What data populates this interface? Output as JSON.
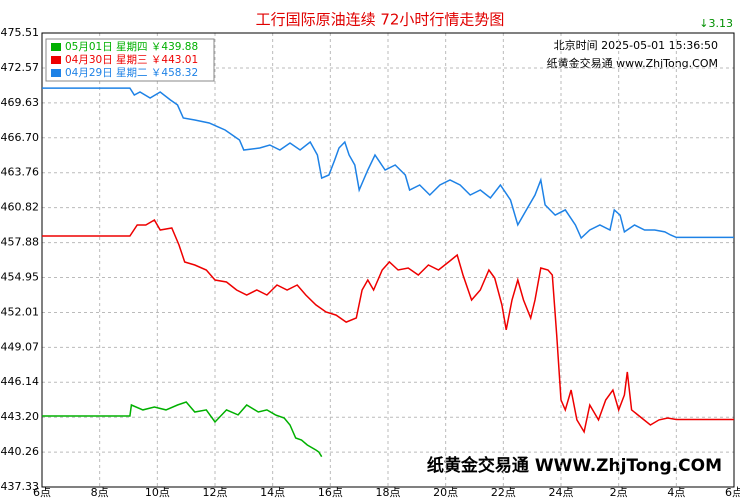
{
  "chart_data": {
    "type": "line",
    "title": "工行国际原油连续 72小时行情走势图",
    "change_label": "↓3.13",
    "time_label": "北京时间 2025-05-01 15:36:50",
    "site_label": "纸黄金交易通 www.ZhjTong.COM",
    "watermark": "纸黄金交易通 WWW.ZhjTong.COM",
    "grid": true,
    "legend": "upper left",
    "xlim": [
      6,
      30
    ],
    "xticks": [
      {
        "value": 6,
        "label": "6点"
      },
      {
        "value": 8,
        "label": "8点"
      },
      {
        "value": 10,
        "label": "10点"
      },
      {
        "value": 12,
        "label": "12点"
      },
      {
        "value": 14,
        "label": "14点"
      },
      {
        "value": 16,
        "label": "16点"
      },
      {
        "value": 18,
        "label": "18点"
      },
      {
        "value": 20,
        "label": "20点"
      },
      {
        "value": 22,
        "label": "22点"
      },
      {
        "value": 24,
        "label": "24点"
      },
      {
        "value": 26,
        "label": "2点"
      },
      {
        "value": 28,
        "label": "4点"
      },
      {
        "value": 30,
        "label": "6点"
      }
    ],
    "ylim": [
      437.33,
      475.51
    ],
    "yticks": [
      475.51,
      472.57,
      469.63,
      {
        "value": 466.7,
        "label": "466.70"
      },
      463.76,
      460.82,
      457.88,
      454.95,
      452.01,
      449.07,
      446.14,
      {
        "value": 443.2,
        "label": "443.20"
      },
      440.26,
      437.33
    ],
    "series": [
      {
        "name": "05月01日 星期四 ￥439.88",
        "color": "#00b000",
        "x": [
          6,
          9.05,
          9.1,
          9.5,
          9.9,
          10.3,
          10.7,
          11.0,
          11.3,
          11.7,
          12.0,
          12.4,
          12.8,
          13.1,
          13.5,
          13.8,
          14.1,
          14.4,
          14.6,
          14.8,
          15.0,
          15.2,
          15.5,
          15.6,
          15.7
        ],
        "values": [
          443.3,
          443.3,
          444.23,
          443.81,
          444.06,
          443.81,
          444.23,
          444.48,
          443.64,
          443.81,
          442.8,
          443.81,
          443.39,
          444.23,
          443.64,
          443.81,
          443.39,
          443.13,
          442.54,
          441.45,
          441.28,
          440.86,
          440.44,
          440.27,
          439.88
        ]
      },
      {
        "name": "04月30日 星期三 ￥443.01",
        "color": "#ee0000",
        "x": [
          6,
          9.05,
          9.3,
          9.6,
          9.9,
          10.1,
          10.5,
          10.75,
          10.95,
          11.3,
          11.7,
          12.0,
          12.4,
          12.75,
          13.1,
          13.45,
          13.8,
          14.15,
          14.5,
          14.85,
          15.15,
          15.5,
          15.85,
          16.2,
          16.55,
          16.9,
          17.1,
          17.3,
          17.5,
          17.8,
          18.05,
          18.35,
          18.7,
          19.05,
          19.4,
          19.75,
          20.1,
          20.4,
          20.6,
          20.9,
          21.2,
          21.5,
          21.7,
          21.95,
          22.1,
          22.3,
          22.5,
          22.7,
          22.95,
          23.1,
          23.3,
          23.55,
          23.7,
          23.85,
          24.0,
          24.15,
          24.35,
          24.55,
          24.8,
          25.0,
          25.3,
          25.55,
          25.8,
          26.0,
          26.2,
          26.3,
          26.45,
          26.8,
          27.1,
          27.4,
          27.7,
          28.0,
          30
        ],
        "values": [
          458.44,
          458.44,
          459.36,
          459.36,
          459.78,
          458.94,
          459.11,
          457.68,
          456.25,
          456.0,
          455.58,
          454.74,
          454.57,
          453.9,
          453.48,
          453.9,
          453.48,
          454.32,
          453.9,
          454.32,
          453.48,
          452.64,
          452.05,
          451.79,
          451.2,
          451.54,
          453.9,
          454.74,
          453.9,
          455.58,
          456.25,
          455.58,
          455.75,
          455.16,
          456.0,
          455.58,
          456.25,
          456.84,
          455.16,
          453.06,
          453.9,
          455.58,
          454.91,
          452.64,
          450.54,
          453.06,
          454.74,
          453.06,
          451.54,
          453.06,
          455.75,
          455.58,
          455.16,
          450.11,
          444.65,
          443.81,
          445.49,
          442.97,
          441.96,
          444.23,
          442.97,
          444.65,
          445.49,
          443.81,
          445.07,
          447.0,
          443.81,
          443.13,
          442.54,
          442.97,
          443.13,
          443.01,
          443.01
        ]
      },
      {
        "name": "04月29日 星期二 ￥458.32",
        "color": "#1e82e6",
        "x": [
          6,
          9.05,
          9.2,
          9.4,
          9.75,
          10.1,
          10.45,
          10.7,
          10.9,
          11.3,
          11.8,
          12.35,
          12.85,
          13.0,
          13.55,
          13.9,
          14.25,
          14.6,
          14.95,
          15.3,
          15.55,
          15.7,
          15.95,
          16.15,
          16.3,
          16.5,
          16.65,
          16.85,
          17.0,
          17.3,
          17.55,
          17.9,
          18.25,
          18.6,
          18.75,
          19.1,
          19.45,
          19.8,
          20.15,
          20.5,
          20.85,
          21.2,
          21.55,
          21.9,
          22.25,
          22.5,
          22.8,
          23.1,
          23.3,
          23.45,
          23.8,
          24.15,
          24.5,
          24.7,
          25.0,
          25.35,
          25.7,
          25.85,
          26.05,
          26.2,
          26.55,
          26.9,
          27.25,
          27.6,
          27.8,
          28.0,
          30
        ],
        "values": [
          470.88,
          470.88,
          470.3,
          470.55,
          470.04,
          470.55,
          469.88,
          469.46,
          468.36,
          468.19,
          467.94,
          467.35,
          466.51,
          465.67,
          465.84,
          466.09,
          465.67,
          466.26,
          465.67,
          466.34,
          465.25,
          463.31,
          463.57,
          464.83,
          465.84,
          466.34,
          465.25,
          464.41,
          462.31,
          463.99,
          465.25,
          463.99,
          464.41,
          463.57,
          462.31,
          462.73,
          461.89,
          462.73,
          463.15,
          462.73,
          461.89,
          462.31,
          461.63,
          462.73,
          461.47,
          459.37,
          460.63,
          461.89,
          463.15,
          461.05,
          460.2,
          460.63,
          459.36,
          458.27,
          458.94,
          459.36,
          458.94,
          460.63,
          460.2,
          458.78,
          459.36,
          458.94,
          458.94,
          458.78,
          458.52,
          458.32,
          458.32
        ]
      }
    ]
  }
}
